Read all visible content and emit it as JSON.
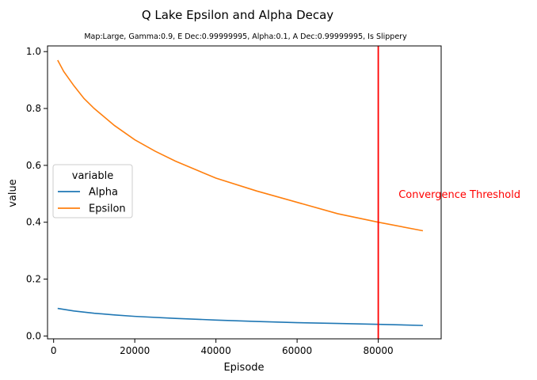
{
  "chart_data": {
    "type": "line",
    "title": "Q Lake Epsilon and Alpha Decay",
    "subtitle": "Map:Large, Gamma:0.9, E Dec:0.99999995, Alpha:0.1, A Dec:0.99999995, Is Slippery",
    "xlabel": "Episode",
    "ylabel": "value",
    "xlim": [
      -1500,
      95500
    ],
    "ylim": [
      -0.01,
      1.02
    ],
    "xticks": [
      0,
      20000,
      40000,
      60000,
      80000
    ],
    "yticks": [
      0.0,
      0.2,
      0.4,
      0.6,
      0.8,
      1.0
    ],
    "grid": false,
    "legend": {
      "title": "variable",
      "placement": "center-left"
    },
    "series": [
      {
        "name": "Alpha",
        "color": "#1f77b4",
        "x": [
          1000,
          5000,
          10000,
          15000,
          20000,
          30000,
          40000,
          50000,
          60000,
          70000,
          80000,
          91000
        ],
        "y": [
          0.097,
          0.088,
          0.08,
          0.074,
          0.069,
          0.062,
          0.056,
          0.051,
          0.047,
          0.044,
          0.041,
          0.037
        ]
      },
      {
        "name": "Epsilon",
        "color": "#ff7f0e",
        "x": [
          1000,
          2500,
          5000,
          7500,
          10000,
          15000,
          20000,
          25000,
          30000,
          40000,
          50000,
          60000,
          70000,
          80000,
          91000
        ],
        "y": [
          0.97,
          0.93,
          0.88,
          0.835,
          0.8,
          0.74,
          0.69,
          0.65,
          0.615,
          0.555,
          0.51,
          0.47,
          0.43,
          0.4,
          0.37
        ]
      }
    ],
    "annotations": [
      {
        "type": "vline",
        "x": 80000,
        "color": "#ff0000",
        "label": "Convergence Threshold",
        "label_x": 85000,
        "label_y": 0.5
      }
    ]
  }
}
